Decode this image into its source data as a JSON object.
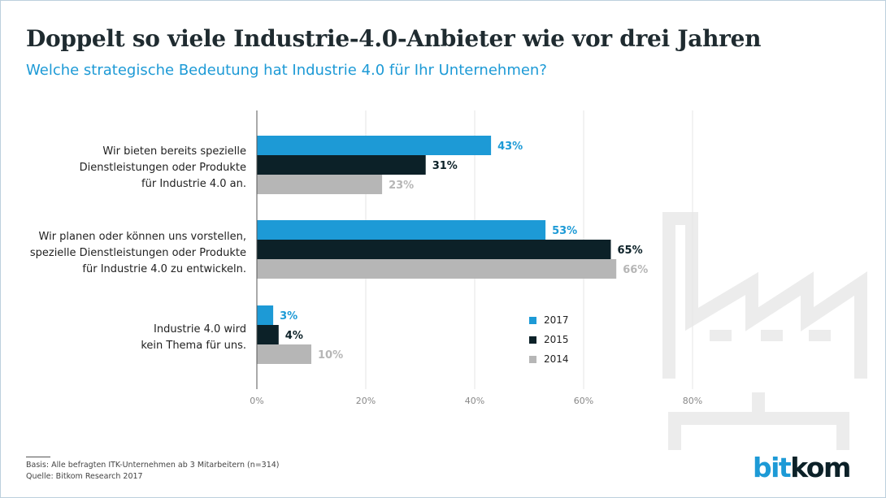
{
  "header": {
    "title": "Doppelt so viele Industrie-4.0-Anbieter wie vor drei Jahren",
    "subtitle": "Welche strategische Bedeutung hat Industrie 4.0 für Ihr Unternehmen?"
  },
  "chart_data": {
    "type": "bar",
    "orientation": "horizontal",
    "categories": [
      [
        "Wir bieten bereits spezielle",
        "Dienstleistungen oder Produkte",
        "für Industrie 4.0 an."
      ],
      [
        "Wir planen oder können uns vorstellen,",
        "spezielle Dienstleistungen oder Produkte",
        "für Industrie 4.0 zu entwickeln."
      ],
      [
        "Industrie 4.0 wird",
        "kein Thema für uns."
      ]
    ],
    "series": [
      {
        "name": "2017",
        "values": [
          43,
          53,
          3
        ],
        "labels": [
          "43%",
          "53%",
          "3%"
        ],
        "color": "#1d9ad6",
        "label_color": "#1d9ad6"
      },
      {
        "name": "2015",
        "values": [
          31,
          65,
          4
        ],
        "labels": [
          "31%",
          "65%",
          "4%"
        ],
        "color": "#0c2128",
        "label_color": "#0c2128"
      },
      {
        "name": "2014",
        "values": [
          23,
          66,
          10
        ],
        "labels": [
          "23%",
          "66%",
          "10%"
        ],
        "color": "#b6b6b6",
        "label_color": "#b6b6b6"
      }
    ],
    "xlim": [
      0,
      80
    ],
    "x_ticks": [
      0,
      20,
      40,
      60,
      80
    ],
    "x_tick_labels": [
      "0%",
      "20%",
      "40%",
      "60%",
      "80%"
    ],
    "grid": true,
    "legend_placement": "lower-right"
  },
  "footer": {
    "basis": "Basis: Alle befragten ITK-Unternehmen ab 3 Mitarbeitern (n=314)",
    "source": "Quelle: Bitkom Research 2017"
  },
  "logo": {
    "part1": "bit",
    "part2": "kom"
  }
}
